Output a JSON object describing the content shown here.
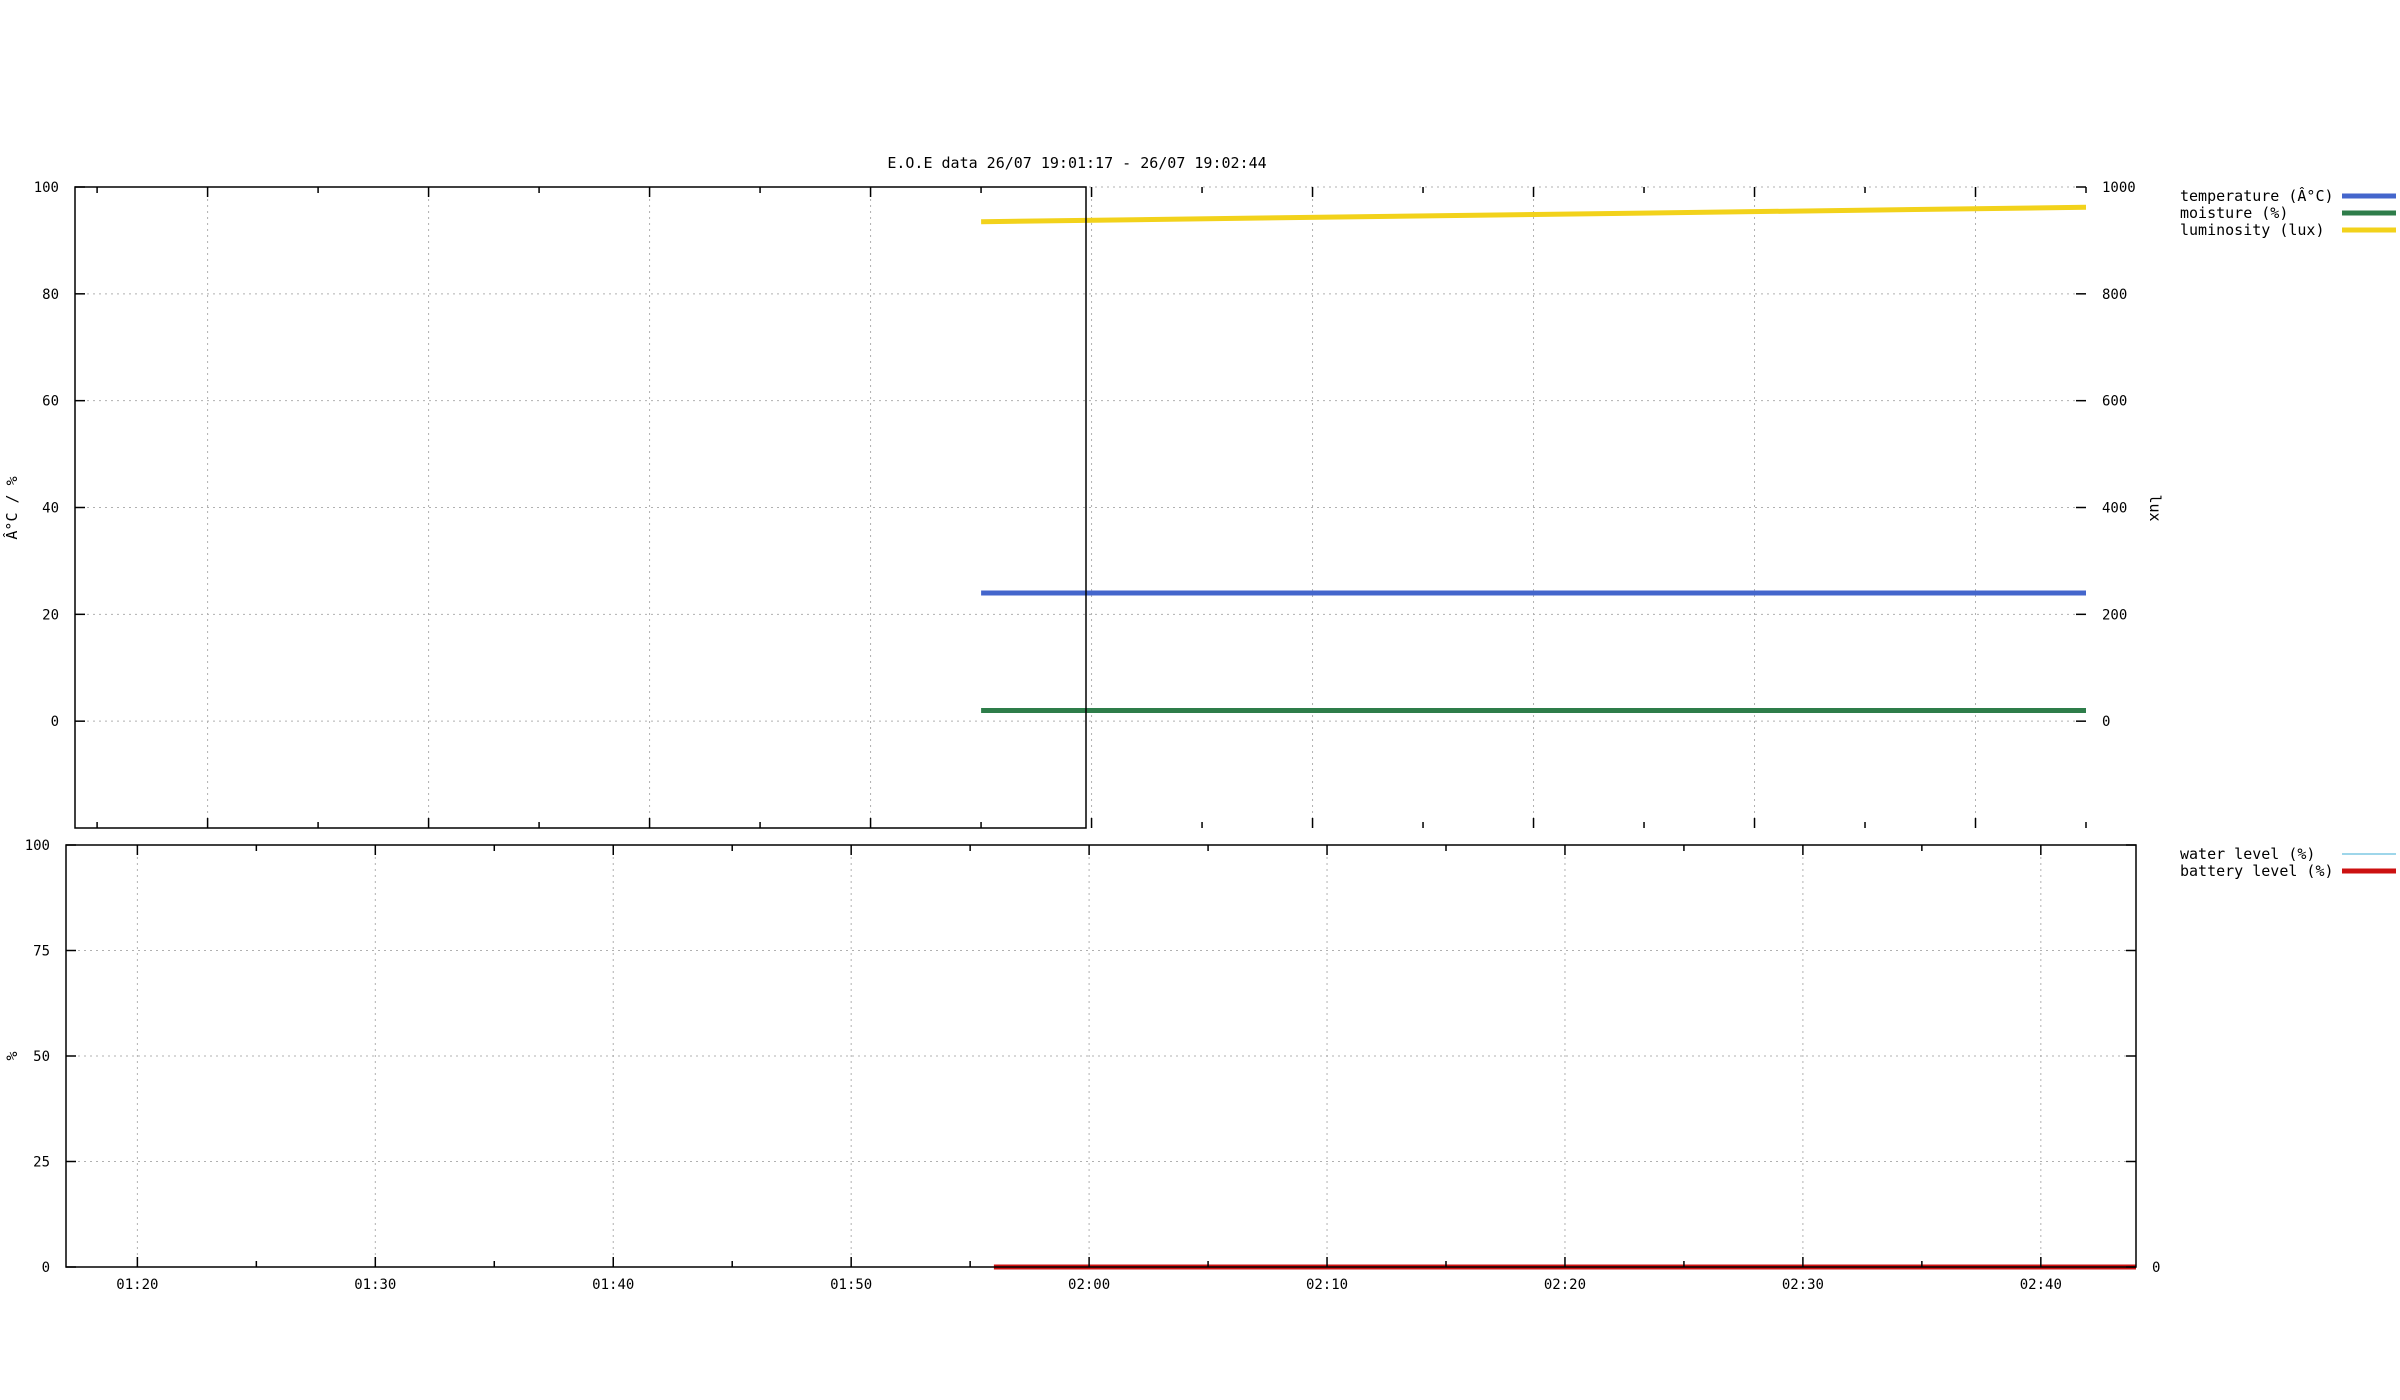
{
  "chart_data": [
    {
      "type": "line",
      "title": "E.O.E data 26/07 19:01:17 - 26/07 19:02:44",
      "ylabel": "Â°C / %",
      "y2label": "lux",
      "x_ticks": [
        "",
        "",
        "",
        "",
        "",
        "",
        "",
        "",
        "",
        "",
        "",
        "",
        "",
        "",
        "",
        "",
        "",
        ""
      ],
      "x_range_min": [
        1,
        14
      ],
      "x_range_max": [
        2,
        45
      ],
      "x_tick_step_min": 5,
      "ylim": [
        -20,
        100
      ],
      "y_ticks": [
        "0",
        "20",
        "40",
        "60",
        "80",
        "100"
      ],
      "y2lim": [
        -200,
        1000
      ],
      "y2_ticks": [
        "0",
        "200",
        "400",
        "600",
        "800",
        "1000"
      ],
      "grid": true,
      "legend_position": "outside-top-right",
      "series": [
        {
          "name": "temperature (Â°C)",
          "axis": "y",
          "color": "#4466cc",
          "x": [
            "01:55",
            "02:45"
          ],
          "values": [
            24,
            24
          ]
        },
        {
          "name": "moisture (%)",
          "axis": "y",
          "color": "#2e7d4a",
          "x": [
            "01:55",
            "02:45"
          ],
          "values": [
            2,
            2
          ]
        },
        {
          "name": "luminosity (lux)",
          "axis": "y2",
          "color": "#f2d21b",
          "x": [
            "01:55",
            "02:45"
          ],
          "values": [
            935,
            962
          ]
        }
      ]
    },
    {
      "type": "line",
      "title": "",
      "ylabel": "%",
      "x_ticks": [
        "01:20",
        "01:30",
        "01:40",
        "01:50",
        "02:00",
        "02:10",
        "02:20",
        "02:30",
        "02:40"
      ],
      "x_range_min": [
        1,
        17
      ],
      "x_range_max": [
        2,
        44
      ],
      "x_tick_step_min": 5,
      "ylim": [
        0,
        100
      ],
      "y_ticks": [
        "0",
        "25",
        "50",
        "75",
        "100"
      ],
      "y2_ticks": [
        "0"
      ],
      "grid": true,
      "legend_position": "outside-top-right",
      "series": [
        {
          "name": "water level (%)",
          "axis": "y",
          "color": "#7ec8e3",
          "x": [],
          "values": []
        },
        {
          "name": "battery level (%)",
          "axis": "y",
          "color": "#cc1111",
          "x": [
            "01:56",
            "02:44"
          ],
          "values": [
            0,
            0
          ]
        }
      ]
    }
  ]
}
